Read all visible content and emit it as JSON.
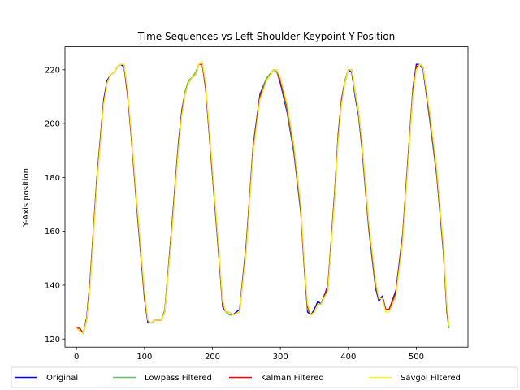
{
  "chart_data": {
    "type": "line",
    "title": "Time Sequences vs Left Shoulder Keypoint Y-Position",
    "xlabel": "",
    "ylabel": "Y-Axis position",
    "xlim": [
      -17,
      576
    ],
    "ylim": [
      117,
      228.5
    ],
    "xticks": [
      0,
      100,
      200,
      300,
      400,
      500
    ],
    "yticks": [
      120,
      140,
      160,
      180,
      200,
      220
    ],
    "legend_position": "bottom",
    "x": [
      0,
      5,
      10,
      15,
      20,
      30,
      40,
      45,
      50,
      55,
      60,
      65,
      70,
      75,
      80,
      90,
      100,
      105,
      110,
      115,
      120,
      125,
      130,
      140,
      150,
      155,
      160,
      165,
      170,
      175,
      180,
      185,
      190,
      200,
      210,
      215,
      220,
      225,
      230,
      240,
      250,
      255,
      260,
      270,
      280,
      290,
      295,
      300,
      310,
      320,
      330,
      335,
      340,
      345,
      350,
      355,
      360,
      370,
      380,
      385,
      390,
      395,
      400,
      405,
      410,
      415,
      420,
      430,
      440,
      445,
      450,
      455,
      460,
      470,
      480,
      490,
      495,
      500,
      505,
      510,
      520,
      530,
      540,
      545,
      548
    ],
    "series": [
      {
        "name": "Original",
        "color": "#0000ff",
        "values": [
          124,
          123,
          122,
          128,
          142,
          180,
          209,
          216,
          218,
          219,
          221,
          222,
          221,
          211,
          197,
          165,
          135,
          126,
          126,
          127,
          127,
          127,
          131,
          161,
          193,
          205,
          212,
          216,
          217,
          218,
          222,
          222,
          213,
          181,
          149,
          132,
          130,
          129,
          129,
          131,
          156,
          174,
          192,
          211,
          217,
          220,
          219,
          215,
          204,
          189,
          167,
          147,
          130,
          129,
          131,
          134,
          133,
          140,
          175,
          196,
          209,
          216,
          220,
          219,
          210,
          203,
          191,
          161,
          139,
          134,
          136,
          131,
          131,
          138,
          159,
          195,
          213,
          222,
          222,
          220,
          201,
          181,
          152,
          130,
          124
        ]
      },
      {
        "name": "Lowpass Filtered",
        "color": "#5fbf5f",
        "values": [
          124,
          123,
          122,
          127,
          141,
          179,
          208,
          215,
          218,
          219,
          221,
          222,
          222,
          212,
          198,
          166,
          136,
          127,
          126,
          127,
          127,
          127,
          131,
          160,
          192,
          204,
          212,
          216,
          217,
          219,
          222,
          222,
          214,
          182,
          150,
          133,
          130,
          129,
          129,
          130,
          155,
          173,
          191,
          210,
          217,
          220,
          219,
          216,
          205,
          190,
          168,
          148,
          131,
          129,
          130,
          133,
          133,
          139,
          174,
          195,
          208,
          216,
          220,
          220,
          211,
          204,
          192,
          162,
          140,
          135,
          135,
          131,
          131,
          137,
          158,
          194,
          212,
          221,
          222,
          221,
          202,
          182,
          153,
          131,
          124
        ]
      },
      {
        "name": "Kalman Filtered",
        "color": "#ff0000",
        "values": [
          124,
          124,
          122,
          127,
          140,
          178,
          208,
          215,
          218,
          219,
          221,
          222,
          222,
          212,
          198,
          167,
          137,
          127,
          126,
          127,
          127,
          127,
          130,
          159,
          191,
          204,
          211,
          215,
          217,
          218,
          222,
          222,
          214,
          183,
          151,
          133,
          130,
          130,
          129,
          130,
          154,
          172,
          190,
          210,
          216,
          220,
          220,
          216,
          206,
          191,
          169,
          149,
          132,
          129,
          130,
          133,
          133,
          139,
          173,
          194,
          208,
          215,
          220,
          220,
          212,
          205,
          193,
          163,
          141,
          135,
          135,
          131,
          131,
          137,
          157,
          193,
          211,
          221,
          222,
          221,
          203,
          183,
          154,
          132,
          125
        ]
      },
      {
        "name": "Savgol Filtered",
        "color": "#ffee22",
        "values": [
          124,
          123,
          122,
          127,
          139,
          177,
          207,
          215,
          218,
          219,
          221,
          222,
          222,
          213,
          199,
          168,
          138,
          127,
          126,
          127,
          127,
          127,
          130,
          158,
          190,
          203,
          211,
          215,
          217,
          218,
          222,
          223,
          215,
          184,
          152,
          134,
          130,
          130,
          129,
          130,
          153,
          171,
          189,
          209,
          216,
          220,
          220,
          217,
          207,
          192,
          170,
          150,
          133,
          129,
          130,
          133,
          133,
          138,
          172,
          193,
          207,
          215,
          220,
          220,
          212,
          205,
          194,
          164,
          142,
          135,
          135,
          130,
          130,
          136,
          156,
          192,
          210,
          220,
          222,
          221,
          204,
          184,
          155,
          133,
          125
        ]
      }
    ]
  }
}
